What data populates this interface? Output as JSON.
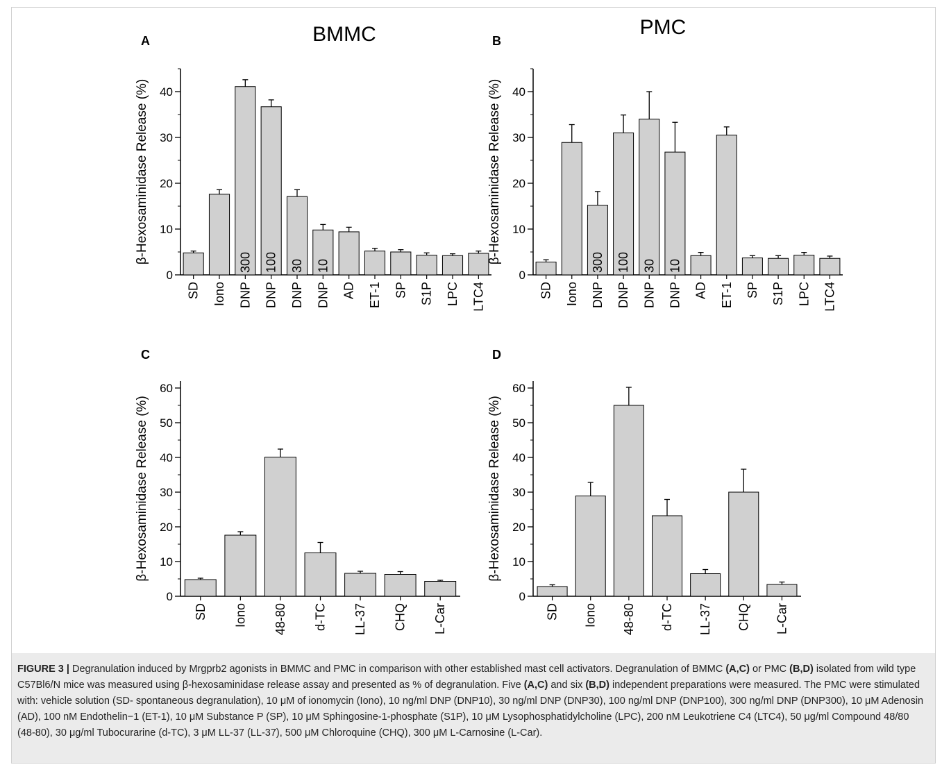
{
  "chart_data": [
    {
      "panel": "A",
      "type": "bar",
      "title": "BMMC",
      "ylabel": "β-Hexosaminidase Release (%)",
      "ylim": [
        0,
        45
      ],
      "yticks": [
        0,
        10,
        20,
        30,
        40
      ],
      "categories": [
        "SD",
        "Iono",
        "DNP",
        "DNP",
        "DNP",
        "DNP",
        "AD",
        "ET-1",
        "SP",
        "S1P",
        "LPC",
        "LTC4"
      ],
      "bar_labels": [
        "",
        "",
        "300",
        "100",
        "30",
        "10",
        "",
        "",
        "",
        "",
        "",
        ""
      ],
      "values": [
        4.8,
        17.6,
        41.1,
        36.7,
        17.1,
        9.8,
        9.4,
        5.2,
        5.0,
        4.3,
        4.2,
        4.7
      ],
      "errors": [
        0.4,
        1.0,
        1.5,
        1.5,
        1.5,
        1.2,
        1.0,
        0.6,
        0.5,
        0.5,
        0.4,
        0.5
      ]
    },
    {
      "panel": "B",
      "type": "bar",
      "title": "PMC",
      "ylabel": "β-Hexosaminidase Release (%)",
      "ylim": [
        0,
        45
      ],
      "yticks": [
        0,
        10,
        20,
        30,
        40
      ],
      "categories": [
        "SD",
        "Iono",
        "DNP",
        "DNP",
        "DNP",
        "DNP",
        "AD",
        "ET-1",
        "SP",
        "S1P",
        "LPC",
        "LTC4"
      ],
      "bar_labels": [
        "",
        "",
        "300",
        "100",
        "30",
        "10",
        "",
        "",
        "",
        "",
        "",
        ""
      ],
      "values": [
        2.8,
        28.9,
        15.2,
        31.0,
        34.0,
        26.8,
        4.2,
        30.5,
        3.7,
        3.6,
        4.3,
        3.6
      ],
      "errors": [
        0.5,
        3.9,
        3.0,
        3.9,
        6.0,
        6.5,
        0.7,
        1.8,
        0.5,
        0.6,
        0.6,
        0.5
      ]
    },
    {
      "panel": "C",
      "type": "bar",
      "title": "",
      "ylabel": "β-Hexosaminidase Release (%)",
      "ylim": [
        0,
        62
      ],
      "yticks": [
        0,
        10,
        20,
        30,
        40,
        50,
        60
      ],
      "categories": [
        "SD",
        "Iono",
        "48-80",
        "d-TC",
        "LL-37",
        "CHQ",
        "L-Car"
      ],
      "bar_labels": [
        "",
        "",
        "",
        "",
        "",
        "",
        ""
      ],
      "values": [
        4.8,
        17.6,
        40.1,
        12.5,
        6.6,
        6.3,
        4.3
      ],
      "errors": [
        0.4,
        1.0,
        2.3,
        3.0,
        0.6,
        0.8,
        0.3
      ]
    },
    {
      "panel": "D",
      "type": "bar",
      "title": "",
      "ylabel": "β-Hexosaminidase Release (%)",
      "ylim": [
        0,
        62
      ],
      "yticks": [
        0,
        10,
        20,
        30,
        40,
        50,
        60
      ],
      "categories": [
        "SD",
        "Iono",
        "48-80",
        "d-TC",
        "LL-37",
        "CHQ",
        "L-Car"
      ],
      "bar_labels": [
        "",
        "",
        "",
        "",
        "",
        "",
        ""
      ],
      "values": [
        2.8,
        28.9,
        55.0,
        23.2,
        6.5,
        30.0,
        3.4
      ],
      "errors": [
        0.5,
        3.9,
        5.2,
        4.7,
        1.2,
        6.6,
        0.7
      ]
    }
  ],
  "caption": {
    "figure_label": "FIGURE 3 |",
    "segments": [
      {
        "t": " Degranulation induced by Mrgprb2 agonists in BMMC and PMC in comparison with other established mast cell activators. Degranulation of BMMC ",
        "b": false
      },
      {
        "t": "(A,C)",
        "b": true
      },
      {
        "t": " or PMC ",
        "b": false
      },
      {
        "t": "(B,D)",
        "b": true
      },
      {
        "t": " isolated from wild type C57Bl6/N mice was measured using β-hexosaminidase release assay and presented as % of degranulation. Five ",
        "b": false
      },
      {
        "t": "(A,C)",
        "b": true
      },
      {
        "t": " and six ",
        "b": false
      },
      {
        "t": "(B,D)",
        "b": true
      },
      {
        "t": " independent preparations were measured. The PMC were stimulated with: vehicle solution (SD- spontaneous degranulation), 10 μM of ionomycin (Iono), 10 ng/ml DNP (DNP10), 30 ng/ml DNP (DNP30), 100 ng/ml DNP (DNP100), 300 ng/ml DNP (DNP300), 10 μM Adenosin (AD), 100 nM Endothelin−1 (ET-1), 10 μM Substance P (SP), 10 μM Sphingosine-1-phosphate (S1P), 10 μM Lysophosphatidylcholine (LPC), 200 nM Leukotriene C4 (LTC4), 50 μg/ml Compound 48/80 (48-80), 30 μg/ml Tubocurarine (d-TC), 3 μM LL-37 (LL-37), 500 μM Chloroquine (CHQ), 300 μM L-Carnosine (L-Car).",
        "b": false
      }
    ]
  },
  "colors": {
    "bar_fill": "#d0d0d0",
    "axis": "#000000",
    "caption_bg": "#ebebeb"
  }
}
